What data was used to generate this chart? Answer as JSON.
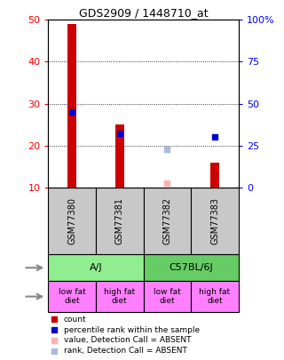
{
  "title": "GDS2909 / 1448710_at",
  "samples": [
    "GSM77380",
    "GSM77381",
    "GSM77382",
    "GSM77383"
  ],
  "red_bars": [
    49,
    25,
    0,
    16
  ],
  "blue_squares": [
    28,
    23,
    0,
    22
  ],
  "pink_squares": [
    0,
    0,
    11,
    0
  ],
  "lightblue_squares": [
    0,
    0,
    19,
    0
  ],
  "ylim_left": [
    10,
    50
  ],
  "yticks_left": [
    10,
    20,
    30,
    40,
    50
  ],
  "ytick_labels_right": [
    "0",
    "25",
    "50",
    "75",
    "100%"
  ],
  "protocol_labels": [
    "low fat\ndiet",
    "high fat\ndiet",
    "low fat\ndiet",
    "high fat\ndiet"
  ],
  "sample_bg": "#C8C8C8",
  "strain_bg_left": "#90EE90",
  "strain_bg_right": "#66CC66",
  "protocol_color": "#FF80FF",
  "red_color": "#CC0000",
  "blue_color": "#0000CC",
  "pink_color": "#FFB0B0",
  "lightblue_color": "#AABBDD",
  "bar_width": 0.18
}
